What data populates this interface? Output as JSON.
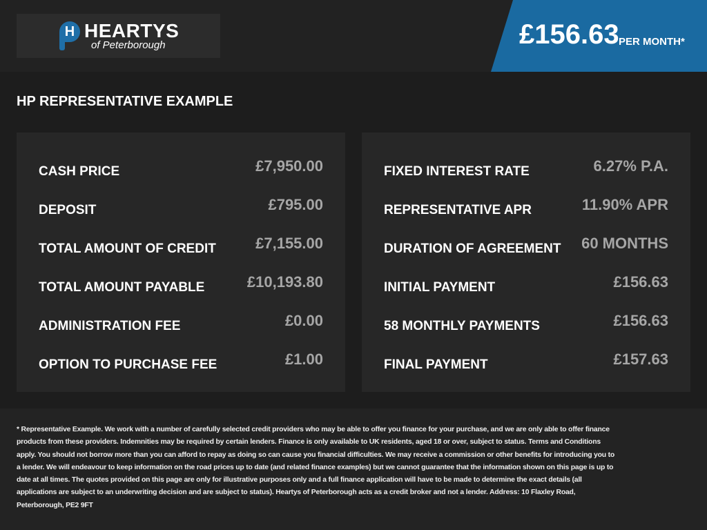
{
  "header": {
    "logo": {
      "name": "HEARTYS",
      "subtitle": "of Peterborough",
      "mark": "H"
    },
    "price": "£156.63",
    "price_suffix": "PER MONTH*",
    "accent_color": "#1a6aa1"
  },
  "section_title": "HP REPRESENTATIVE EXAMPLE",
  "left_panel": [
    {
      "label": "CASH PRICE",
      "value": "£7,950.00"
    },
    {
      "label": "DEPOSIT",
      "value": "£795.00"
    },
    {
      "label": "TOTAL AMOUNT OF CREDIT",
      "value": "£7,155.00"
    },
    {
      "label": "TOTAL AMOUNT PAYABLE",
      "value": "£10,193.80"
    },
    {
      "label": "ADMINISTRATION FEE",
      "value": "£0.00"
    },
    {
      "label": "OPTION TO PURCHASE FEE",
      "value": "£1.00"
    }
  ],
  "right_panel": [
    {
      "label": "FIXED INTEREST RATE",
      "value": "6.27% P.A."
    },
    {
      "label": "REPRESENTATIVE APR",
      "value": "11.90% APR"
    },
    {
      "label": "DURATION OF AGREEMENT",
      "value": "60 MONTHS"
    },
    {
      "label": "INITIAL PAYMENT",
      "value": "£156.63"
    },
    {
      "label": "58 MONTHLY PAYMENTS",
      "value": "£156.63"
    },
    {
      "label": "FINAL PAYMENT",
      "value": "£157.63"
    }
  ],
  "disclaimer": "* Representative Example. We work with a number of carefully selected credit providers who may be able to offer you finance for your purchase, and we are only able to offer finance products from these providers. Indemnities may be required by certain lenders. Finance is only available to UK residents, aged 18 or over, subject to status. Terms and Conditions apply. You should not borrow more than you can afford to repay as doing so can cause you financial difficulties. We may receive a commission or other benefits for introducing you to a lender. We will endeavour to keep information on the road prices up to date (and related finance examples) but we cannot guarantee that the information shown on this page is up to date at all times. The quotes provided on this page are only for illustrative purposes only and a full finance application will have to be made to determine the exact details (all applications are subject to an underwriting decision and are subject to status). Heartys of Peterborough acts as a credit broker and not a lender. Address: 10 Flaxley Road, Peterborough, PE2 9FT"
}
